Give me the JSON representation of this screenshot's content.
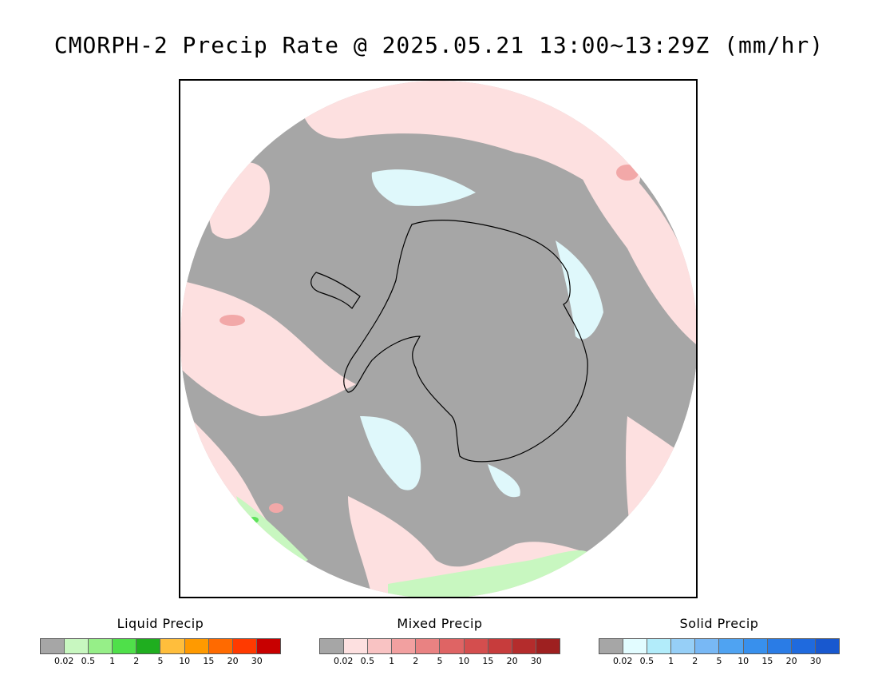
{
  "title": "CMORPH-2 Precip Rate @ 2025.05.21 13:00~13:29Z (mm/hr)",
  "map": {
    "projection": "south-polar-stereographic",
    "region": "Antarctica",
    "colors": {
      "no_precip": "#a6a6a6",
      "background": "#ffffff",
      "coastline": "#000000",
      "mixed_light": "#fde0e0",
      "mixed_medium": "#f2a8a8",
      "solid_light": "#dff8fb",
      "liquid_light": "#c8f7c0",
      "liquid_medium": "#5de35a"
    }
  },
  "legends": [
    {
      "title": "Liquid Precip",
      "ticks": [
        "0.02",
        "0.5",
        "1",
        "2",
        "5",
        "10",
        "15",
        "20",
        "30"
      ],
      "colors": [
        "#a6a6a6",
        "#c8f7c0",
        "#96ef88",
        "#4fe04a",
        "#1fae1f",
        "#ffbe3c",
        "#ff9a00",
        "#ff6a00",
        "#ff3a00",
        "#c80000"
      ]
    },
    {
      "title": "Mixed Precip",
      "ticks": [
        "0.02",
        "0.5",
        "1",
        "2",
        "5",
        "10",
        "15",
        "20",
        "30"
      ],
      "colors": [
        "#a6a6a6",
        "#fde0e0",
        "#f9c3c3",
        "#f2a0a0",
        "#e98282",
        "#df6464",
        "#d44e4e",
        "#c73c3c",
        "#b42c2c",
        "#9e2020"
      ]
    },
    {
      "title": "Solid Precip",
      "ticks": [
        "0.02",
        "0.5",
        "1",
        "2",
        "5",
        "10",
        "15",
        "20",
        "30"
      ],
      "colors": [
        "#a6a6a6",
        "#e2fcff",
        "#b2ecfa",
        "#96cff7",
        "#78b8f5",
        "#4fa3f2",
        "#3890ed",
        "#2a7ce6",
        "#1f6ade",
        "#1858cf"
      ]
    }
  ]
}
